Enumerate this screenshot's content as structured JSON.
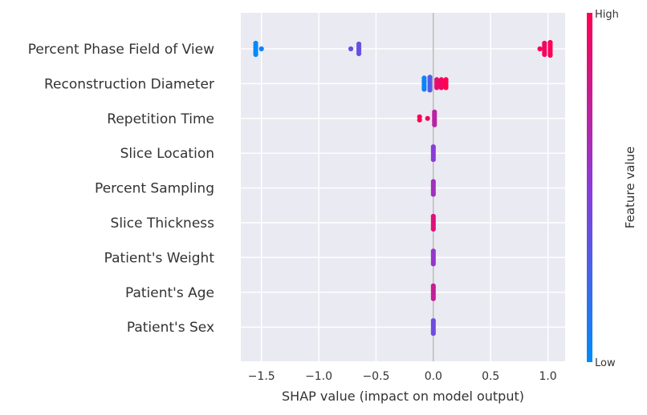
{
  "chart_data": {
    "type": "scatter",
    "title": "",
    "xlabel": "SHAP value (impact on model output)",
    "xlim": [
      -1.68,
      1.15
    ],
    "xticks": [
      -1.5,
      -1.0,
      -0.5,
      0.0,
      0.5,
      1.0
    ],
    "xtick_labels": [
      "−1.5",
      "−1.0",
      "−0.5",
      "0.0",
      "0.5",
      "1.0"
    ],
    "grid": true,
    "features": [
      "Percent Phase Field of View",
      "Reconstruction Diameter",
      "Repetition Time",
      "Slice Location",
      "Percent Sampling",
      "Slice Thickness",
      "Patient's Weight",
      "Patient's Age",
      "Patient's Sex"
    ],
    "clusters": [
      {
        "feature": 0,
        "x": -1.55,
        "value": 0.0,
        "spread": 14
      },
      {
        "feature": 0,
        "x": -1.5,
        "value": 0.05,
        "spread": 1
      },
      {
        "feature": 0,
        "x": -0.72,
        "value": 0.35,
        "spread": 2
      },
      {
        "feature": 0,
        "x": -0.65,
        "value": 0.38,
        "spread": 12
      },
      {
        "feature": 0,
        "x": 0.93,
        "value": 1.0,
        "spread": 1
      },
      {
        "feature": 0,
        "x": 0.97,
        "value": 0.95,
        "spread": 14
      },
      {
        "feature": 0,
        "x": 1.02,
        "value": 0.98,
        "spread": 16
      },
      {
        "feature": 1,
        "x": -0.08,
        "value": 0.05,
        "spread": 14
      },
      {
        "feature": 1,
        "x": -0.03,
        "value": 0.3,
        "spread": 16
      },
      {
        "feature": 1,
        "x": 0.03,
        "value": 0.9,
        "spread": 10
      },
      {
        "feature": 1,
        "x": 0.07,
        "value": 0.95,
        "spread": 10
      },
      {
        "feature": 1,
        "x": 0.11,
        "value": 1.0,
        "spread": 10
      },
      {
        "feature": 2,
        "x": -0.12,
        "value": 1.0,
        "spread": 4
      },
      {
        "feature": 2,
        "x": -0.05,
        "value": 0.95,
        "spread": 2
      },
      {
        "feature": 2,
        "x": 0.01,
        "value": 0.7,
        "spread": 16
      },
      {
        "feature": 3,
        "x": 0.0,
        "value": 0.5,
        "spread": 16
      },
      {
        "feature": 4,
        "x": 0.0,
        "value": 0.6,
        "spread": 16
      },
      {
        "feature": 5,
        "x": 0.0,
        "value": 0.85,
        "spread": 16
      },
      {
        "feature": 6,
        "x": 0.0,
        "value": 0.55,
        "spread": 16
      },
      {
        "feature": 7,
        "x": 0.0,
        "value": 0.75,
        "spread": 16
      },
      {
        "feature": 8,
        "x": 0.0,
        "value": 0.4,
        "spread": 16
      }
    ],
    "colorbar": {
      "label": "Feature value",
      "high_label": "High",
      "low_label": "Low",
      "low_color": "#008bfb",
      "mid_color": "#8a3cd8",
      "high_color": "#ff0052"
    }
  }
}
